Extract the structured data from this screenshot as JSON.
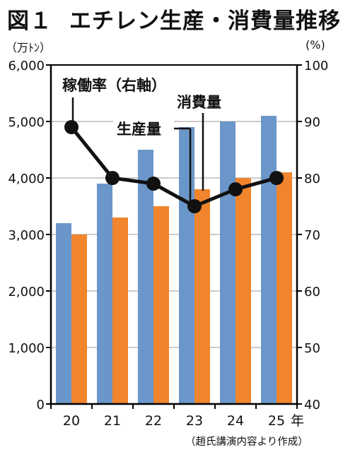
{
  "title": {
    "number": "図１",
    "text": "エチレン生産・消費量推移"
  },
  "units": {
    "left": "（万ﾄﾝ）",
    "right": "(%)"
  },
  "source": "（趙氏講演内容より作成）",
  "annotations": {
    "rate": "稼働率（右軸）",
    "production": "生産量",
    "consumption": "消費量"
  },
  "chart_data": {
    "type": "bar",
    "categories": [
      "20",
      "21",
      "22",
      "23",
      "24",
      "25"
    ],
    "x_unit": "年",
    "series": [
      {
        "name": "生産量",
        "type": "bar",
        "axis": "left",
        "color": "#6b96c9",
        "values": [
          3200,
          3900,
          4500,
          4900,
          5000,
          5100
        ]
      },
      {
        "name": "消費量",
        "type": "bar",
        "axis": "left",
        "color": "#f0852d",
        "values": [
          3000,
          3300,
          3500,
          3800,
          4000,
          4100
        ]
      },
      {
        "name": "稼働率",
        "type": "line",
        "axis": "right",
        "color": "#111111",
        "values": [
          89,
          80,
          79,
          75,
          78,
          80
        ]
      }
    ],
    "y_left": {
      "min": 0,
      "max": 6000,
      "ticks": [
        0,
        1000,
        2000,
        3000,
        4000,
        5000,
        6000
      ],
      "tick_labels": [
        "0",
        "1,000",
        "2,000",
        "3,000",
        "4,000",
        "5,000",
        "6,000"
      ]
    },
    "y_right": {
      "min": 40,
      "max": 100,
      "ticks": [
        40,
        50,
        60,
        70,
        80,
        90,
        100
      ],
      "tick_labels": [
        "40",
        "50",
        "60",
        "70",
        "80",
        "90",
        "100"
      ]
    },
    "grid": true
  }
}
